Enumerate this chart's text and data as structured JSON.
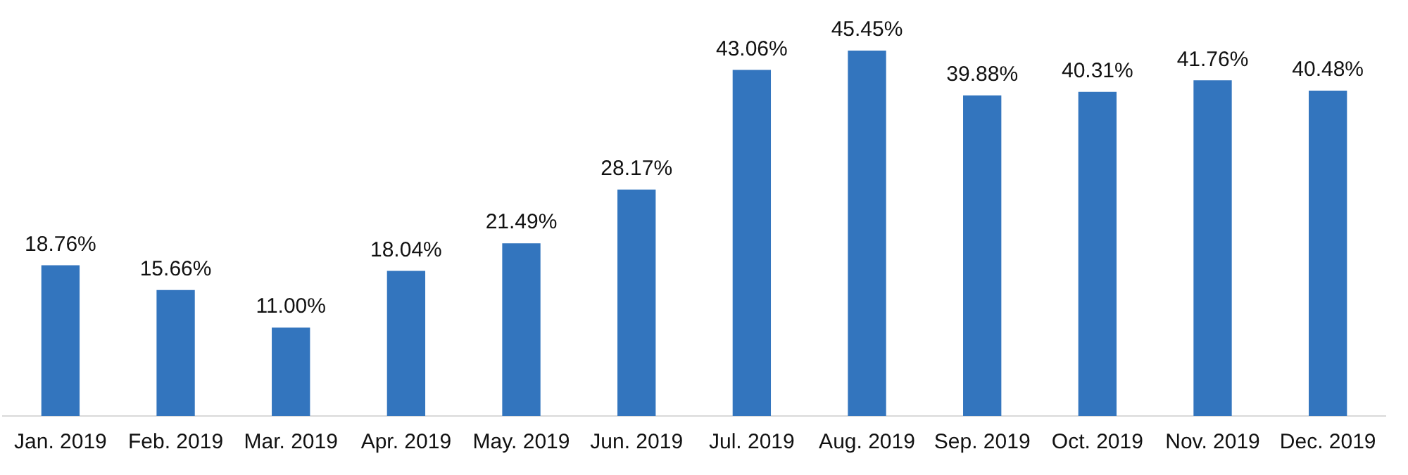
{
  "chart_data": {
    "type": "bar",
    "categories": [
      "Jan. 2019",
      "Feb. 2019",
      "Mar. 2019",
      "Apr. 2019",
      "May. 2019",
      "Jun. 2019",
      "Jul. 2019",
      "Aug. 2019",
      "Sep. 2019",
      "Oct. 2019",
      "Nov. 2019",
      "Dec. 2019"
    ],
    "values": [
      18.76,
      15.66,
      11.0,
      18.04,
      21.49,
      28.17,
      43.06,
      45.45,
      39.88,
      40.31,
      41.76,
      40.48
    ],
    "value_labels": [
      "18.76%",
      "15.66%",
      "11.00%",
      "18.04%",
      "21.49%",
      "28.17%",
      "43.06%",
      "45.45%",
      "39.88%",
      "40.31%",
      "41.76%",
      "40.48%"
    ],
    "color": "#3375be",
    "grid": false,
    "legend": false
  }
}
